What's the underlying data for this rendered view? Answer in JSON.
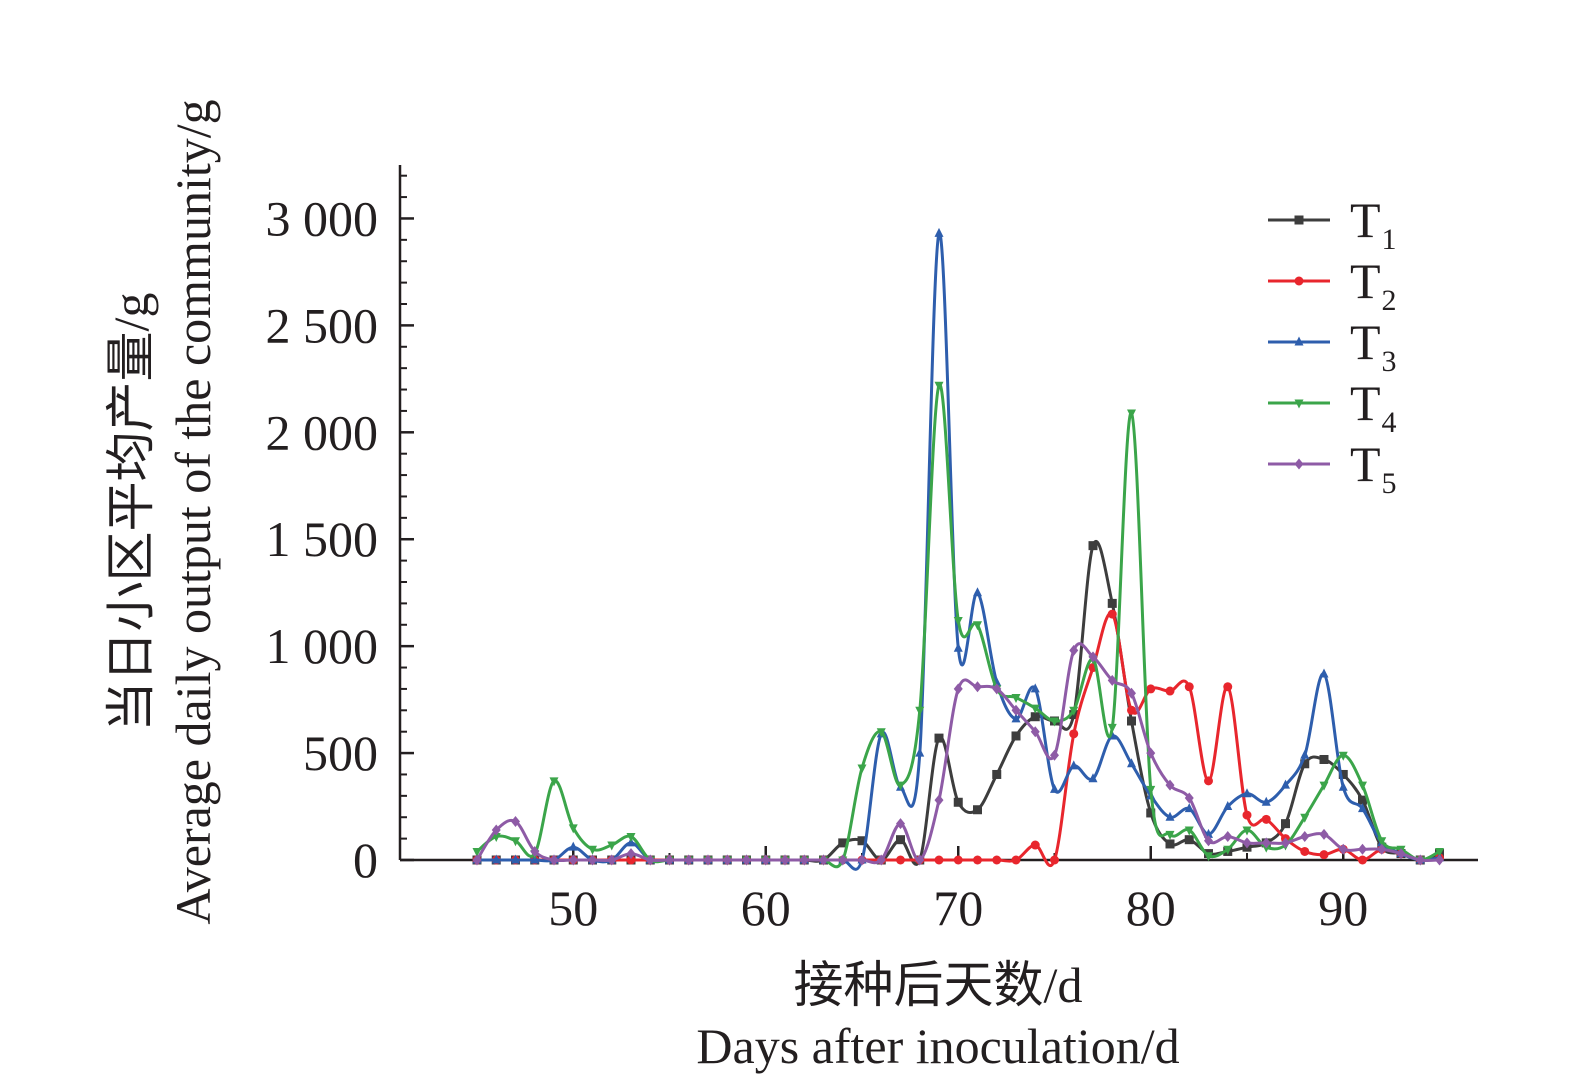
{
  "chart_data": {
    "type": "line",
    "xlabel_cn": "接种后天数/d",
    "xlabel_en": "Days after inoculation/d",
    "ylabel_cn": "当日小区平均产量/g",
    "ylabel_en": "Average daily output of the community/g",
    "xlim": [
      41,
      97
    ],
    "ylim": [
      0,
      3250
    ],
    "xticks": [
      50,
      60,
      70,
      80,
      90
    ],
    "xtick_labels": [
      "50",
      "60",
      "70",
      "80",
      "90"
    ],
    "yticks": [
      0,
      500,
      1000,
      1500,
      2000,
      2500,
      3000
    ],
    "ytick_labels": [
      "0",
      "500",
      "1 000",
      "1 500",
      "2 000",
      "2 500",
      "3 000"
    ],
    "legend_position": "top-right",
    "x": [
      45,
      46,
      47,
      48,
      49,
      50,
      51,
      52,
      53,
      54,
      55,
      56,
      57,
      58,
      59,
      60,
      61,
      62,
      63,
      64,
      65,
      66,
      67,
      68,
      69,
      70,
      71,
      72,
      73,
      74,
      75,
      76,
      77,
      78,
      79,
      80,
      81,
      82,
      83,
      84,
      85,
      86,
      87,
      88,
      89,
      90,
      91,
      92,
      93,
      94,
      95
    ],
    "series": [
      {
        "name": "T",
        "sub": "1",
        "color": "#3d3d3d",
        "marker": "square",
        "values": [
          0,
          0,
          0,
          0,
          0,
          0,
          0,
          0,
          0,
          0,
          0,
          0,
          0,
          0,
          0,
          0,
          0,
          0,
          0,
          80,
          90,
          0,
          95,
          0,
          570,
          270,
          235,
          400,
          580,
          670,
          650,
          680,
          1470,
          1200,
          650,
          220,
          75,
          95,
          30,
          40,
          60,
          80,
          170,
          450,
          470,
          400,
          280,
          60,
          30,
          0,
          30
        ]
      },
      {
        "name": "T",
        "sub": "2",
        "color": "#e8262d",
        "marker": "circle",
        "values": [
          0,
          0,
          0,
          0,
          0,
          0,
          0,
          0,
          0,
          0,
          0,
          0,
          0,
          0,
          0,
          0,
          0,
          0,
          0,
          0,
          0,
          0,
          0,
          0,
          0,
          0,
          0,
          0,
          0,
          70,
          0,
          590,
          900,
          1150,
          700,
          800,
          790,
          810,
          370,
          810,
          210,
          190,
          100,
          40,
          25,
          50,
          0,
          50,
          30,
          0,
          10
        ]
      },
      {
        "name": "T",
        "sub": "3",
        "color": "#2e5ead",
        "marker": "triangle",
        "values": [
          0,
          0,
          0,
          0,
          0,
          60,
          0,
          0,
          80,
          0,
          0,
          0,
          0,
          0,
          0,
          0,
          0,
          0,
          0,
          0,
          0,
          590,
          340,
          500,
          2930,
          990,
          1250,
          830,
          660,
          800,
          330,
          440,
          380,
          580,
          450,
          300,
          200,
          240,
          120,
          250,
          310,
          270,
          350,
          490,
          870,
          340,
          240,
          80,
          30,
          0,
          10
        ]
      },
      {
        "name": "T",
        "sub": "4",
        "color": "#3ba54a",
        "marker": "triangle-down",
        "values": [
          40,
          110,
          90,
          30,
          370,
          150,
          50,
          70,
          110,
          0,
          0,
          0,
          0,
          0,
          0,
          0,
          0,
          0,
          0,
          0,
          430,
          600,
          350,
          700,
          2220,
          1120,
          1100,
          800,
          760,
          710,
          650,
          700,
          940,
          620,
          2090,
          330,
          120,
          140,
          20,
          50,
          140,
          60,
          70,
          200,
          350,
          490,
          350,
          90,
          50,
          0,
          40
        ]
      },
      {
        "name": "T",
        "sub": "5",
        "color": "#8e5ba6",
        "marker": "diamond",
        "values": [
          0,
          140,
          180,
          40,
          0,
          0,
          0,
          0,
          30,
          0,
          0,
          0,
          0,
          0,
          0,
          0,
          0,
          0,
          0,
          0,
          0,
          0,
          170,
          0,
          280,
          800,
          810,
          800,
          700,
          600,
          490,
          980,
          950,
          840,
          780,
          500,
          350,
          290,
          90,
          110,
          80,
          80,
          80,
          110,
          120,
          50,
          50,
          50,
          30,
          0,
          0
        ]
      }
    ]
  }
}
